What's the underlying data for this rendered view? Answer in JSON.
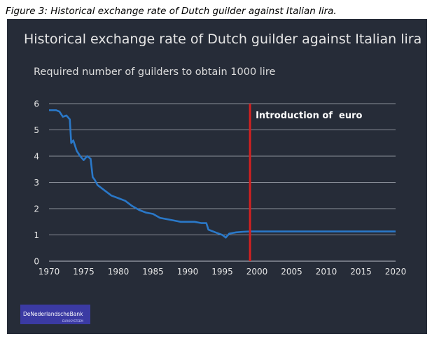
{
  "figure_caption": "Figure 3: Historical exchange rate of Dutch guilder against Italian lira.",
  "logo": {
    "text": "DeNederlandscheBank",
    "sub": "EUROSYSTEEM"
  },
  "colors": {
    "background": "#262c38",
    "line": "#2a78c8",
    "marker": "#d42020",
    "grid": "#8a8f99",
    "text": "#e6e6e6"
  },
  "chart_data": {
    "type": "line",
    "title": "Historical exchange rate of Dutch guilder against Italian lira",
    "subtitle": "Required number of guilders to obtain 1000 lire",
    "xlabel": "",
    "ylabel": "",
    "xlim": [
      1970,
      2020
    ],
    "ylim": [
      0,
      6
    ],
    "x_ticks": [
      1970,
      1975,
      1980,
      1985,
      1990,
      1995,
      2000,
      2005,
      2010,
      2015,
      2020
    ],
    "y_ticks": [
      0,
      1,
      2,
      3,
      4,
      5,
      6
    ],
    "grid": "horizontal",
    "series": [
      {
        "x": [
          1970,
          1971,
          1971.5,
          1972,
          1972.5,
          1973,
          1973.2,
          1973.5,
          1974,
          1974.5,
          1975,
          1975.5,
          1976,
          1976.3,
          1976.6,
          1977,
          1978,
          1979,
          1980,
          1981,
          1982,
          1983,
          1984,
          1985,
          1986,
          1987,
          1988,
          1989,
          1990,
          1991,
          1992,
          1992.7,
          1993,
          1994,
          1995,
          1995.5,
          1996,
          1997,
          1998,
          1999,
          2005,
          2010,
          2015,
          2020
        ],
        "y": [
          5.75,
          5.75,
          5.7,
          5.5,
          5.55,
          5.4,
          4.5,
          4.6,
          4.2,
          4.0,
          3.85,
          4.0,
          3.9,
          3.2,
          3.1,
          2.9,
          2.7,
          2.5,
          2.4,
          2.3,
          2.1,
          1.95,
          1.85,
          1.8,
          1.65,
          1.6,
          1.55,
          1.5,
          1.5,
          1.5,
          1.45,
          1.45,
          1.2,
          1.1,
          1.0,
          0.9,
          1.05,
          1.1,
          1.12,
          1.13,
          1.13,
          1.13,
          1.13,
          1.13
        ]
      }
    ],
    "annotations": [
      {
        "type": "vline",
        "x": 1999,
        "label": "Introduction of  euro"
      }
    ]
  }
}
